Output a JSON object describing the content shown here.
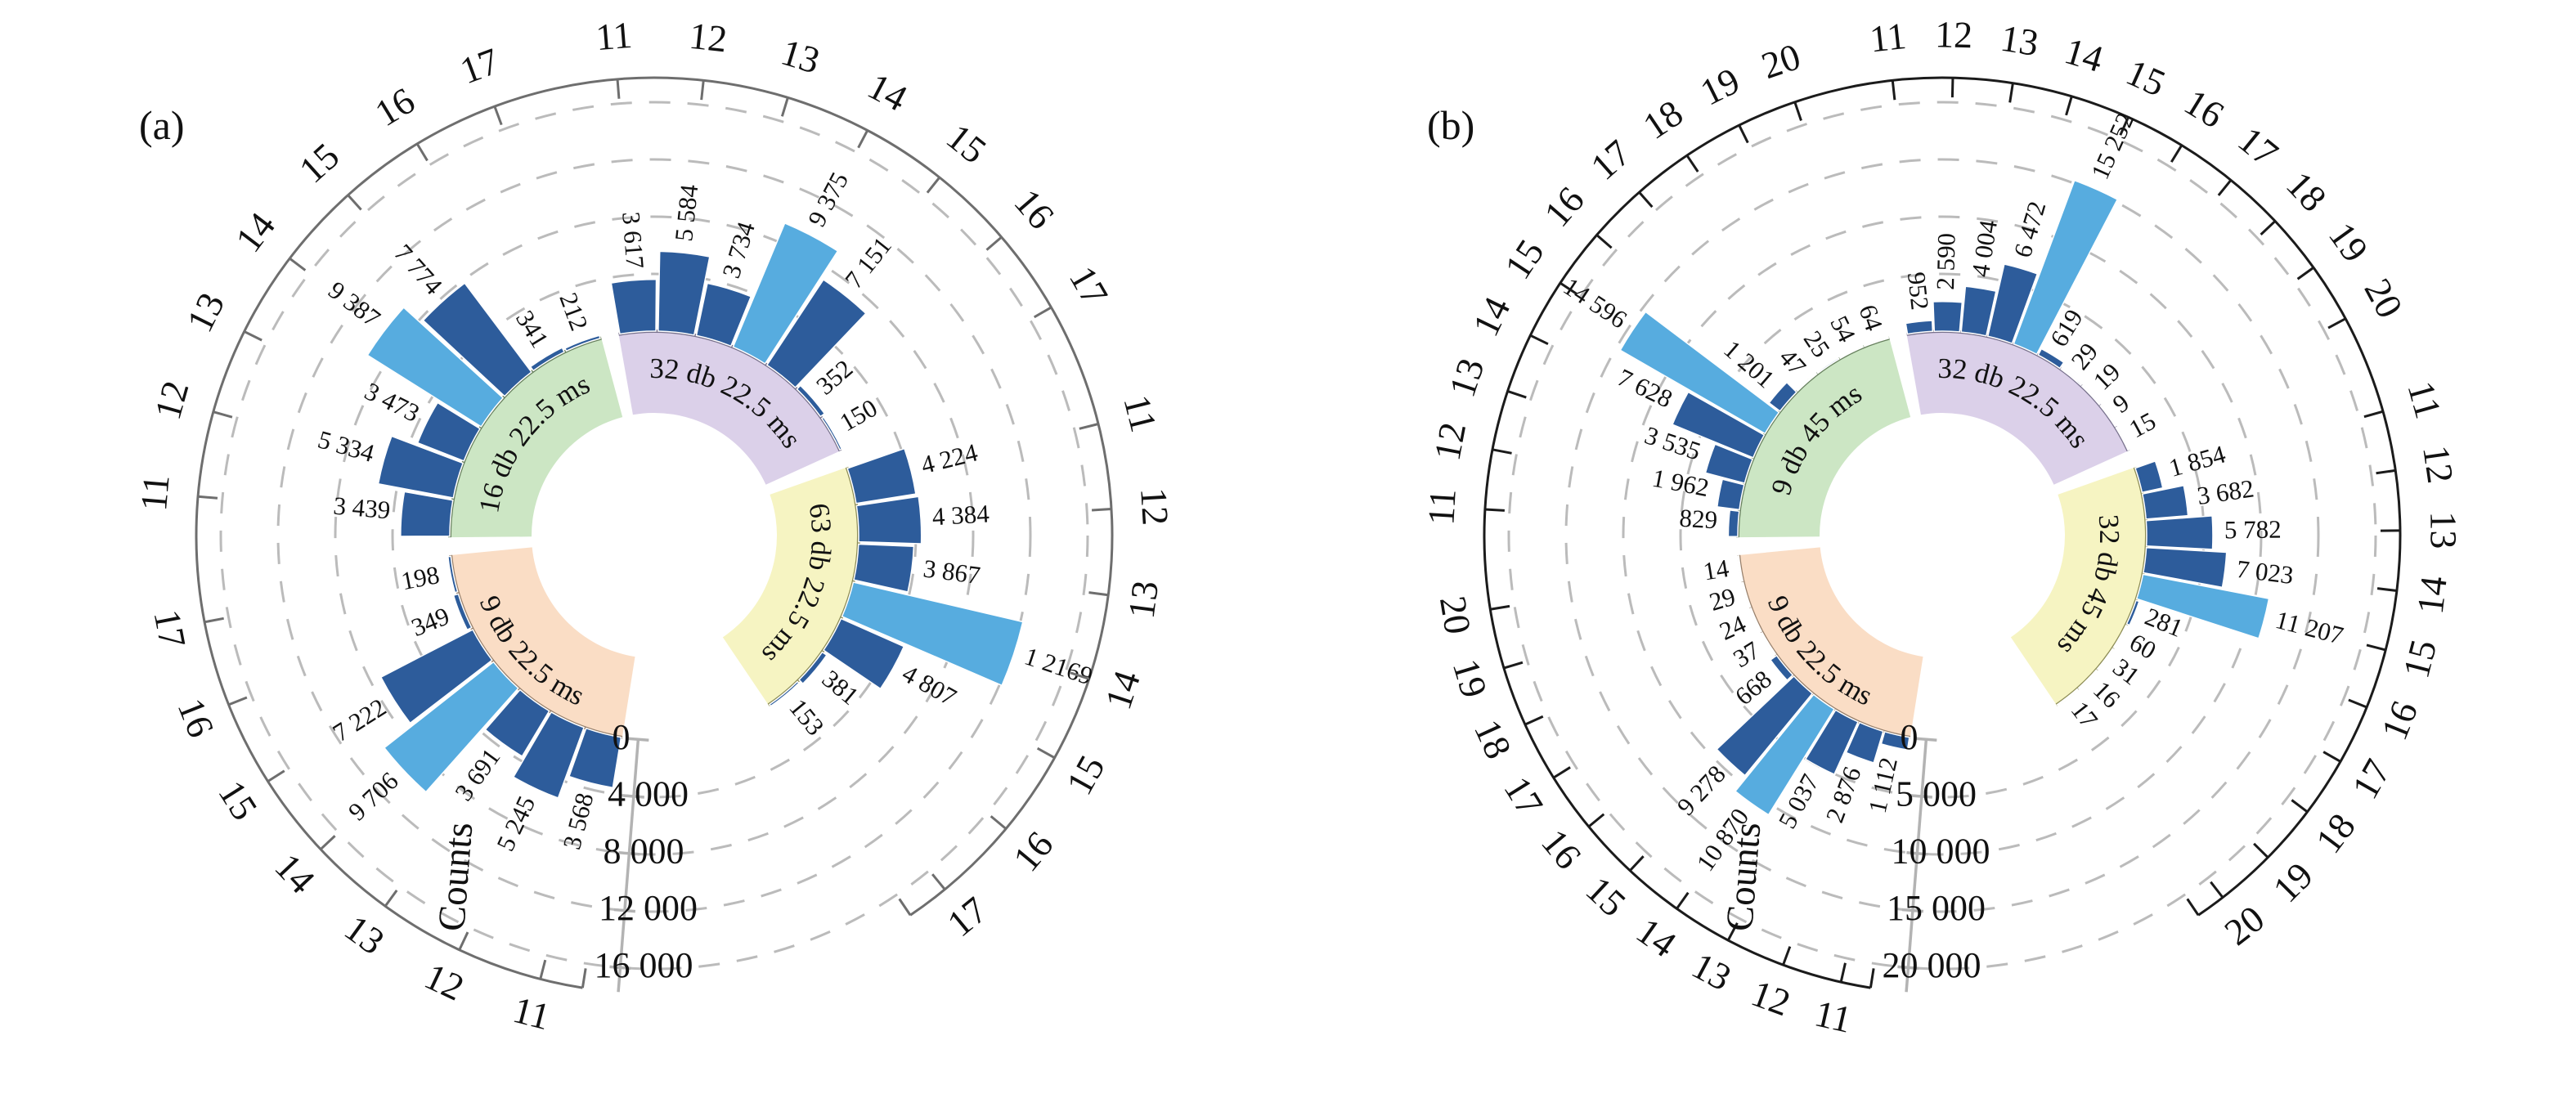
{
  "figure": {
    "background": "#ffffff"
  },
  "chart_data": [
    {
      "type": "bar",
      "subtype": "circular-histogram",
      "panel_label": "(a)",
      "counts_axis_label": "Counts",
      "axis_ticks": [
        "0",
        "4 000",
        "8 000",
        "12 000",
        "16 000"
      ],
      "axis_max": 16000,
      "grid": "dashed-circles",
      "ring_color": "#6e6e6e",
      "axis_line_color": "#b3b3b3",
      "bar_color": "#2d5c9b",
      "bar_highlight_color": "#57acdf",
      "hours": [
        "11",
        "12",
        "13",
        "14",
        "15",
        "16",
        "17"
      ],
      "segments": [
        {
          "name": "9 db 22.5 ms",
          "fill": "#faddc5",
          "edge": "#97806c",
          "flip_label": true,
          "values": [
            3568,
            5245,
            3691,
            9706,
            7222,
            349,
            198
          ],
          "labels": [
            "3 568",
            "5 245",
            "3 691",
            "9 706",
            "7 222",
            "349",
            "198"
          ]
        },
        {
          "name": "16 db 22.5 ms",
          "fill": "#cce6c4",
          "edge": "#68815f",
          "flip_label": false,
          "values": [
            3439,
            5334,
            3473,
            9387,
            7774,
            341,
            212
          ],
          "labels": [
            "3 439",
            "5 334",
            "3 473",
            "9 387",
            "7 774",
            "341",
            "212"
          ]
        },
        {
          "name": "32 db 22.5 ms",
          "fill": "#dbd0e9",
          "edge": "#77718c",
          "flip_label": false,
          "values": [
            3617,
            5584,
            3734,
            9375,
            7151,
            352,
            150
          ],
          "labels": [
            "3 617",
            "5 584",
            "3 734",
            "9 375",
            "7 151",
            "352",
            "150"
          ]
        },
        {
          "name": "63 db 22.5 ms",
          "fill": "#f6f4c2",
          "edge": "#8c8c55",
          "flip_label": false,
          "values": [
            4224,
            4384,
            3867,
            12169,
            4807,
            381,
            153
          ],
          "labels": [
            "4 224",
            "4 384",
            "3 867",
            "1 2169",
            "4 807",
            "381",
            "153"
          ]
        }
      ]
    },
    {
      "type": "bar",
      "subtype": "circular-histogram",
      "panel_label": "(b)",
      "counts_axis_label": "Counts",
      "axis_ticks": [
        "0",
        "5 000",
        "10 000",
        "15 000",
        "20 000"
      ],
      "axis_max": 20000,
      "grid": "dashed-circles",
      "ring_color": "#1b1b1b",
      "axis_line_color": "#b3b3b3",
      "bar_color": "#2d5c9b",
      "bar_highlight_color": "#57acdf",
      "hours": [
        "11",
        "12",
        "13",
        "14",
        "15",
        "16",
        "17",
        "18",
        "19",
        "20"
      ],
      "segments": [
        {
          "name": "9 db 22.5 ms",
          "fill": "#faddc5",
          "edge": "#97806c",
          "flip_label": true,
          "values": [
            1112,
            2876,
            5037,
            10870,
            9278,
            668,
            37,
            24,
            29,
            14
          ],
          "labels": [
            "1 112",
            "2 876",
            "5 037",
            "10 870",
            "9 278",
            "668",
            "37",
            "24",
            "29",
            "14"
          ]
        },
        {
          "name": "9 db 45 ms",
          "fill": "#cce6c4",
          "edge": "#68815f",
          "flip_label": false,
          "values": [
            829,
            1962,
            3535,
            7628,
            14596,
            1201,
            47,
            25,
            54,
            64
          ],
          "labels": [
            "829",
            "1 962",
            "3 535",
            "7 628",
            "14 596",
            "1 201",
            "47",
            "25",
            "54",
            "64"
          ]
        },
        {
          "name": "32 db 22.5 ms",
          "fill": "#dbd0e9",
          "edge": "#77718c",
          "flip_label": false,
          "values": [
            952,
            2590,
            4004,
            6472,
            15252,
            619,
            29,
            19,
            9,
            15
          ],
          "labels": [
            "952",
            "2 590",
            "4 004",
            "6 472",
            "15 252",
            "619",
            "29",
            "19",
            "9",
            "15"
          ]
        },
        {
          "name": "32 db 45 ms",
          "fill": "#f6f4c2",
          "edge": "#8c8c55",
          "flip_label": false,
          "values": [
            1854,
            3682,
            5782,
            7023,
            11207,
            281,
            60,
            31,
            16,
            17
          ],
          "labels": [
            "1 854",
            "3 682",
            "5 782",
            "7 023",
            "11 207",
            "281",
            "60",
            "31",
            "16",
            "17"
          ]
        }
      ]
    }
  ]
}
